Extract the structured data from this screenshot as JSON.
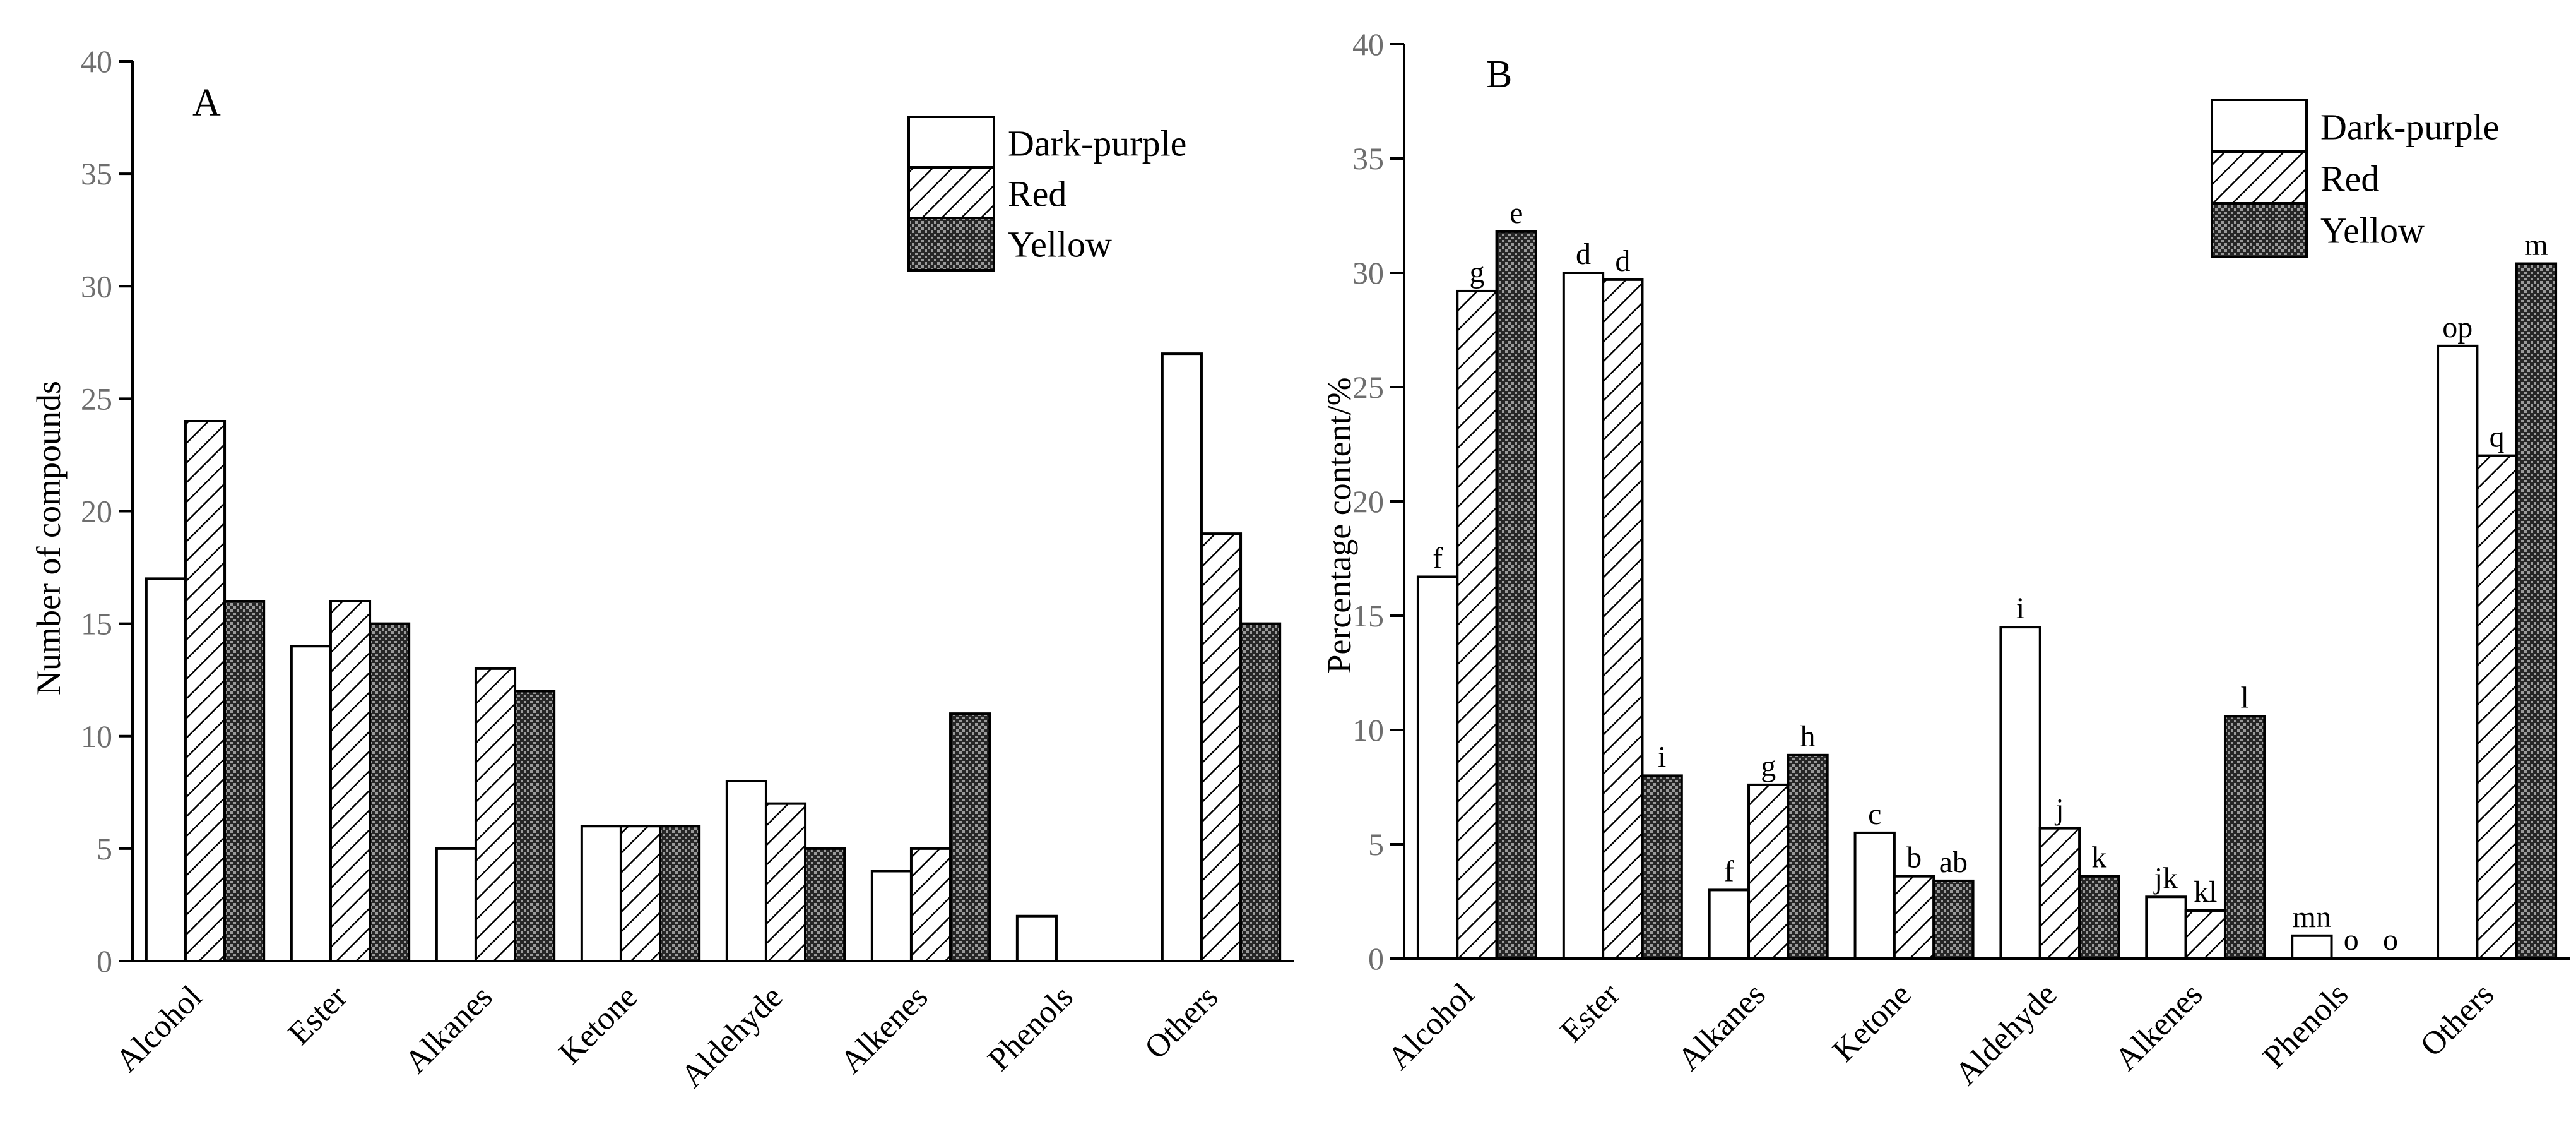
{
  "figure": {
    "series_styles": [
      {
        "name": "Dark-purple",
        "pattern": "solid-white",
        "fill": "#ffffff"
      },
      {
        "name": "Red",
        "pattern": "diagonal-hatch",
        "fill": "#ffffff"
      },
      {
        "name": "Yellow",
        "pattern": "dense-crosshatch",
        "fill": "#2a2a2a"
      }
    ]
  },
  "chart_data": [
    {
      "type": "bar",
      "panel_label": "A",
      "title": "",
      "xlabel": "",
      "ylabel": "Number of compounds",
      "ylim": [
        0,
        40
      ],
      "yticks": [
        0,
        5,
        10,
        15,
        20,
        25,
        30,
        35,
        40
      ],
      "categories": [
        "Alcohol",
        "Ester",
        "Alkanes",
        "Ketone",
        "Aldehyde",
        "Alkenes",
        "Phenols",
        "Others"
      ],
      "series": [
        {
          "name": "Dark-purple",
          "values": [
            17,
            14,
            5,
            6,
            8,
            4,
            2,
            27
          ]
        },
        {
          "name": "Red",
          "values": [
            24,
            16,
            13,
            6,
            7,
            5,
            0,
            19
          ]
        },
        {
          "name": "Yellow",
          "values": [
            16,
            15,
            12,
            6,
            5,
            11,
            0,
            15
          ]
        }
      ],
      "legend": {
        "placement": "top-right",
        "entries": [
          "Dark-purple",
          "Red",
          "Yellow"
        ]
      }
    },
    {
      "type": "bar",
      "panel_label": "B",
      "title": "",
      "xlabel": "",
      "ylabel": "Percentage content/%",
      "ylim": [
        0,
        40
      ],
      "yticks": [
        0,
        5,
        10,
        15,
        20,
        25,
        30,
        35,
        40
      ],
      "categories": [
        "Alcohol",
        "Ester",
        "Alkanes",
        "Ketone",
        "Aldehyde",
        "Alkenes",
        "Phenols",
        "Others"
      ],
      "series": [
        {
          "name": "Dark-purple",
          "values": [
            16.7,
            30.0,
            3.0,
            5.5,
            14.5,
            2.7,
            1.0,
            26.8
          ],
          "labels": [
            "f",
            "d",
            "f",
            "c",
            "i",
            "jk",
            "mn",
            "op"
          ]
        },
        {
          "name": "Red",
          "values": [
            29.2,
            29.7,
            7.6,
            3.6,
            5.7,
            2.1,
            0,
            22.0
          ],
          "labels": [
            "g",
            "d",
            "g",
            "b",
            "j",
            "kl",
            "o",
            "q"
          ]
        },
        {
          "name": "Yellow",
          "values": [
            31.8,
            8.0,
            8.9,
            3.4,
            3.6,
            10.6,
            0,
            30.4
          ],
          "labels": [
            "e",
            "i",
            "h",
            "ab",
            "k",
            "l",
            "o",
            "m"
          ]
        }
      ],
      "legend": {
        "placement": "top-right",
        "entries": [
          "Dark-purple",
          "Red",
          "Yellow"
        ]
      }
    }
  ]
}
